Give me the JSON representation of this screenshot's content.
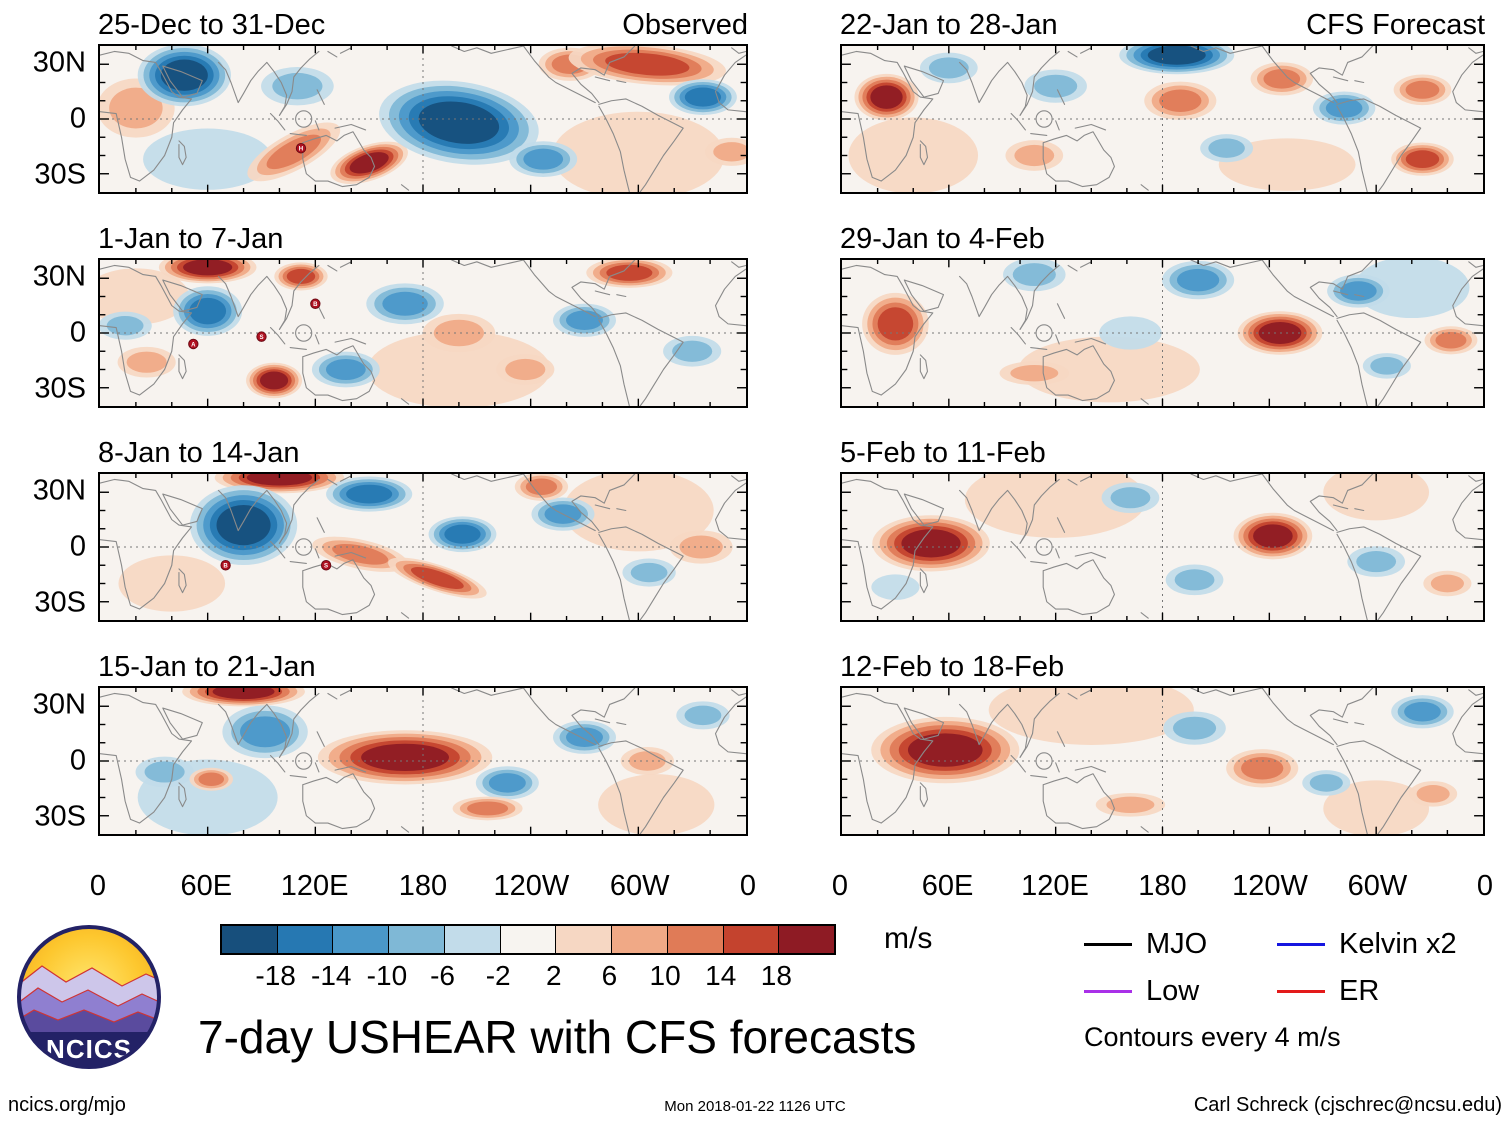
{
  "chart_data": {
    "type": "heatmap",
    "title": "7-day USHEAR with CFS forecasts",
    "units": "m/s",
    "contour_note": "Contours every 4 m/s",
    "x_ticks": [
      "0",
      "60E",
      "120E",
      "180",
      "120W",
      "60W",
      "0"
    ],
    "y_ticks": [
      "30N",
      "0",
      "30S"
    ],
    "x_range_deg": [
      0,
      360
    ],
    "y_range_deg": [
      40,
      -40
    ],
    "grid": "dashed at equator and 180",
    "columns": [
      {
        "corner_label": "Observed",
        "panels": [
          {
            "label": "25-Dec to 31-Dec",
            "anomalies": [
              {
                "x": 20,
                "y": 34,
                "v": 6,
                "r": 18,
                "sx": 1.2,
                "sy": 0.9
              },
              {
                "x": 300,
                "y": 60,
                "v": 4,
                "r": 30,
                "sx": 1.6,
                "sy": 0.8
              },
              {
                "x": 60,
                "y": 62,
                "v": -4,
                "r": 24,
                "sx": 1.5,
                "sy": 0.7
              },
              {
                "x": 47,
                "y": 16,
                "v": -18,
                "r": 20,
                "sx": 1.3,
                "sy": 0.85
              },
              {
                "x": 110,
                "y": 22,
                "v": -8,
                "r": 15
              },
              {
                "x": 108,
                "y": 58,
                "v": 12,
                "r": 18,
                "sx": 1.6,
                "sy": 0.55,
                "rot": -28
              },
              {
                "x": 150,
                "y": 64,
                "v": 18,
                "r": 15,
                "sx": 1.5,
                "sy": 0.65,
                "rot": -18
              },
              {
                "x": 200,
                "y": 42,
                "v": -18,
                "r": 28,
                "sx": 1.6,
                "sy": 0.8,
                "rot": 8
              },
              {
                "x": 247,
                "y": 62,
                "v": -10,
                "r": 14
              },
              {
                "x": 262,
                "y": 10,
                "v": 10,
                "r": 13
              },
              {
                "x": 305,
                "y": 10,
                "v": 16,
                "r": 22,
                "sx": 2.0,
                "sy": 0.5,
                "rot": 5
              },
              {
                "x": 336,
                "y": 28,
                "v": -14,
                "r": 14
              },
              {
                "x": 352,
                "y": 58,
                "v": 8,
                "r": 11
              }
            ],
            "storms": [
              {
                "x": 112,
                "y": 56,
                "label": "H"
              }
            ]
          },
          {
            "label": "1-Jan to 7-Jan",
            "anomalies": [
              {
                "x": 200,
                "y": 60,
                "v": 4,
                "r": 30,
                "sx": 1.7,
                "sy": 0.7
              },
              {
                "x": 20,
                "y": 20,
                "v": 4,
                "r": 22
              },
              {
                "x": 60,
                "y": 4,
                "v": 18,
                "r": 16,
                "sx": 1.7,
                "sy": 0.55
              },
              {
                "x": 112,
                "y": 9,
                "v": 14,
                "r": 11
              },
              {
                "x": 60,
                "y": 28,
                "v": -14,
                "r": 16,
                "sx": 1.2,
                "sy": 0.85
              },
              {
                "x": 14,
                "y": 36,
                "v": -8,
                "r": 11
              },
              {
                "x": 26,
                "y": 56,
                "v": 6,
                "r": 12
              },
              {
                "x": 97,
                "y": 66,
                "v": 18,
                "r": 13,
                "sx": 1.2,
                "sy": 0.75
              },
              {
                "x": 137,
                "y": 60,
                "v": -12,
                "r": 14
              },
              {
                "x": 170,
                "y": 24,
                "v": -12,
                "r": 16
              },
              {
                "x": 200,
                "y": 40,
                "v": 6,
                "r": 15
              },
              {
                "x": 295,
                "y": 7,
                "v": 16,
                "r": 15,
                "sx": 1.6,
                "sy": 0.55
              },
              {
                "x": 270,
                "y": 33,
                "v": -12,
                "r": 13
              },
              {
                "x": 330,
                "y": 50,
                "v": -8,
                "r": 12
              },
              {
                "x": 237,
                "y": 60,
                "v": 6,
                "r": 12
              }
            ],
            "storms": [
              {
                "x": 52,
                "y": 46,
                "label": "A"
              },
              {
                "x": 90,
                "y": 42,
                "label": "S"
              },
              {
                "x": 120,
                "y": 24,
                "label": "B"
              }
            ]
          },
          {
            "label": "8-Jan to 14-Jan",
            "anomalies": [
              {
                "x": 300,
                "y": 20,
                "v": 4,
                "r": 28,
                "sx": 1.5,
                "sy": 0.8
              },
              {
                "x": 40,
                "y": 60,
                "v": 4,
                "r": 22
              },
              {
                "x": 100,
                "y": 2,
                "v": 20,
                "r": 19,
                "sx": 1.9,
                "sy": 0.45
              },
              {
                "x": 80,
                "y": 28,
                "v": -18,
                "r": 23,
                "sx": 1.3,
                "sy": 0.95
              },
              {
                "x": 150,
                "y": 11,
                "v": -14,
                "r": 16,
                "sx": 1.5,
                "sy": 0.6
              },
              {
                "x": 145,
                "y": 44,
                "v": 12,
                "r": 16,
                "sx": 1.7,
                "sy": 0.5,
                "rot": 12
              },
              {
                "x": 188,
                "y": 57,
                "v": 16,
                "r": 16,
                "sx": 1.8,
                "sy": 0.45,
                "rot": 18
              },
              {
                "x": 202,
                "y": 33,
                "v": -16,
                "r": 14
              },
              {
                "x": 258,
                "y": 22,
                "v": -10,
                "r": 13
              },
              {
                "x": 246,
                "y": 7,
                "v": 10,
                "r": 11
              },
              {
                "x": 335,
                "y": 40,
                "v": 8,
                "r": 13
              },
              {
                "x": 306,
                "y": 54,
                "v": -8,
                "r": 11
              }
            ],
            "storms": [
              {
                "x": 70,
                "y": 50,
                "label": "B"
              },
              {
                "x": 126,
                "y": 50,
                "label": "S"
              }
            ]
          },
          {
            "label": "15-Jan to 21-Jan",
            "anomalies": [
              {
                "x": 60,
                "y": 60,
                "v": -4,
                "r": 26,
                "sx": 1.5,
                "sy": 0.8
              },
              {
                "x": 310,
                "y": 64,
                "v": 4,
                "r": 24
              },
              {
                "x": 80,
                "y": 2,
                "v": 20,
                "r": 18,
                "sx": 1.9,
                "sy": 0.45
              },
              {
                "x": 92,
                "y": 24,
                "v": -10,
                "r": 17,
                "sx": 1.4,
                "sy": 0.85
              },
              {
                "x": 36,
                "y": 46,
                "v": -8,
                "r": 12
              },
              {
                "x": 62,
                "y": 50,
                "v": 10,
                "r": 9
              },
              {
                "x": 170,
                "y": 38,
                "v": 20,
                "r": 27,
                "sx": 1.8,
                "sy": 0.55
              },
              {
                "x": 227,
                "y": 52,
                "v": -10,
                "r": 13
              },
              {
                "x": 216,
                "y": 66,
                "v": 10,
                "r": 13,
                "sx": 1.5,
                "sy": 0.5
              },
              {
                "x": 270,
                "y": 27,
                "v": -12,
                "r": 13
              },
              {
                "x": 305,
                "y": 40,
                "v": 8,
                "r": 11
              },
              {
                "x": 336,
                "y": 15,
                "v": -8,
                "r": 11
              }
            ],
            "storms": []
          }
        ]
      },
      {
        "corner_label": "CFS Forecast",
        "panels": [
          {
            "label": "22-Jan to 28-Jan",
            "anomalies": [
              {
                "x": 40,
                "y": 60,
                "v": 4,
                "r": 26,
                "sx": 1.4,
                "sy": 0.8
              },
              {
                "x": 250,
                "y": 65,
                "v": 4,
                "r": 24,
                "sx": 1.6,
                "sy": 0.6
              },
              {
                "x": 188,
                "y": 5,
                "v": -18,
                "r": 19,
                "sx": 1.7,
                "sy": 0.55
              },
              {
                "x": 25,
                "y": 28,
                "v": 18,
                "r": 15,
                "sx": 1.2,
                "sy": 0.85
              },
              {
                "x": 120,
                "y": 22,
                "v": -8,
                "r": 13
              },
              {
                "x": 190,
                "y": 30,
                "v": 12,
                "r": 15
              },
              {
                "x": 247,
                "y": 18,
                "v": 12,
                "r": 13
              },
              {
                "x": 282,
                "y": 34,
                "v": -12,
                "r": 13
              },
              {
                "x": 326,
                "y": 24,
                "v": 10,
                "r": 12
              },
              {
                "x": 326,
                "y": 62,
                "v": 14,
                "r": 13
              },
              {
                "x": 216,
                "y": 56,
                "v": -8,
                "r": 11
              },
              {
                "x": 108,
                "y": 60,
                "v": 6,
                "r": 12
              },
              {
                "x": 60,
                "y": 12,
                "v": -8,
                "r": 12
              }
            ],
            "storms": []
          },
          {
            "label": "29-Jan to 4-Feb",
            "anomalies": [
              {
                "x": 150,
                "y": 60,
                "v": 4,
                "r": 30,
                "sx": 1.7,
                "sy": 0.6
              },
              {
                "x": 320,
                "y": 15,
                "v": -4,
                "r": 24
              },
              {
                "x": 30,
                "y": 35,
                "v": 16,
                "r": 17,
                "sx": 1.1,
                "sy": 1.0
              },
              {
                "x": 108,
                "y": 8,
                "v": -6,
                "r": 13
              },
              {
                "x": 200,
                "y": 11,
                "v": -12,
                "r": 15
              },
              {
                "x": 246,
                "y": 40,
                "v": 20,
                "r": 17,
                "sx": 1.4,
                "sy": 0.7
              },
              {
                "x": 290,
                "y": 17,
                "v": -12,
                "r": 13
              },
              {
                "x": 108,
                "y": 62,
                "v": 8,
                "r": 13,
                "sx": 1.5,
                "sy": 0.5
              },
              {
                "x": 162,
                "y": 40,
                "v": -4,
                "r": 13
              },
              {
                "x": 342,
                "y": 44,
                "v": 10,
                "r": 11
              },
              {
                "x": 306,
                "y": 58,
                "v": -6,
                "r": 10
              }
            ],
            "storms": []
          },
          {
            "label": "5-Feb to 11-Feb",
            "anomalies": [
              {
                "x": 120,
                "y": 14,
                "v": 4,
                "r": 30,
                "sx": 1.7,
                "sy": 0.7
              },
              {
                "x": 300,
                "y": 10,
                "v": 4,
                "r": 22
              },
              {
                "x": 50,
                "y": 38,
                "v": 20,
                "r": 22,
                "sx": 1.5,
                "sy": 0.7
              },
              {
                "x": 162,
                "y": 13,
                "v": -6,
                "r": 12
              },
              {
                "x": 242,
                "y": 34,
                "v": 18,
                "r": 17,
                "sx": 1.3,
                "sy": 0.75
              },
              {
                "x": 300,
                "y": 48,
                "v": -8,
                "r": 12
              },
              {
                "x": 198,
                "y": 58,
                "v": -6,
                "r": 12
              },
              {
                "x": 30,
                "y": 62,
                "v": -4,
                "r": 10
              },
              {
                "x": 340,
                "y": 60,
                "v": 6,
                "r": 10
              }
            ],
            "storms": []
          },
          {
            "label": "12-Feb to 18-Feb",
            "anomalies": [
              {
                "x": 140,
                "y": 12,
                "v": 4,
                "r": 32,
                "sx": 1.8,
                "sy": 0.6
              },
              {
                "x": 300,
                "y": 66,
                "v": 4,
                "r": 22
              },
              {
                "x": 58,
                "y": 34,
                "v": 20,
                "r": 26,
                "sx": 1.6,
                "sy": 0.7
              },
              {
                "x": 198,
                "y": 22,
                "v": -6,
                "r": 13
              },
              {
                "x": 236,
                "y": 44,
                "v": 12,
                "r": 15
              },
              {
                "x": 326,
                "y": 13,
                "v": -10,
                "r": 13
              },
              {
                "x": 162,
                "y": 64,
                "v": 8,
                "r": 13,
                "sx": 1.5,
                "sy": 0.5
              },
              {
                "x": 332,
                "y": 58,
                "v": 8,
                "r": 10
              },
              {
                "x": 272,
                "y": 52,
                "v": -6,
                "r": 10
              }
            ],
            "storms": []
          }
        ]
      }
    ],
    "colorbar": {
      "tick_labels": [
        "-18",
        "-14",
        "-10",
        "-6",
        "-2",
        "2",
        "6",
        "10",
        "14",
        "18"
      ],
      "colors": [
        "#174f7c",
        "#2678b2",
        "#4a98c9",
        "#7fb8d6",
        "#c2dcea",
        "#f7f4f0",
        "#f6d7c3",
        "#f0a986",
        "#e07b57",
        "#c4432e",
        "#8e1b24"
      ]
    },
    "legend": [
      {
        "label": "MJO",
        "color": "#000000"
      },
      {
        "label": "Kelvin x2",
        "color": "#1515e0"
      },
      {
        "label": "Low",
        "color": "#a930e8"
      },
      {
        "label": "ER",
        "color": "#e31a1a"
      }
    ]
  },
  "logo": {
    "text": "NCICS"
  },
  "footer": {
    "left": "ncics.org/mjo",
    "center": "Mon 2018-01-22 1126 UTC",
    "right": "Carl Schreck (cjschrec@ncsu.edu)"
  }
}
